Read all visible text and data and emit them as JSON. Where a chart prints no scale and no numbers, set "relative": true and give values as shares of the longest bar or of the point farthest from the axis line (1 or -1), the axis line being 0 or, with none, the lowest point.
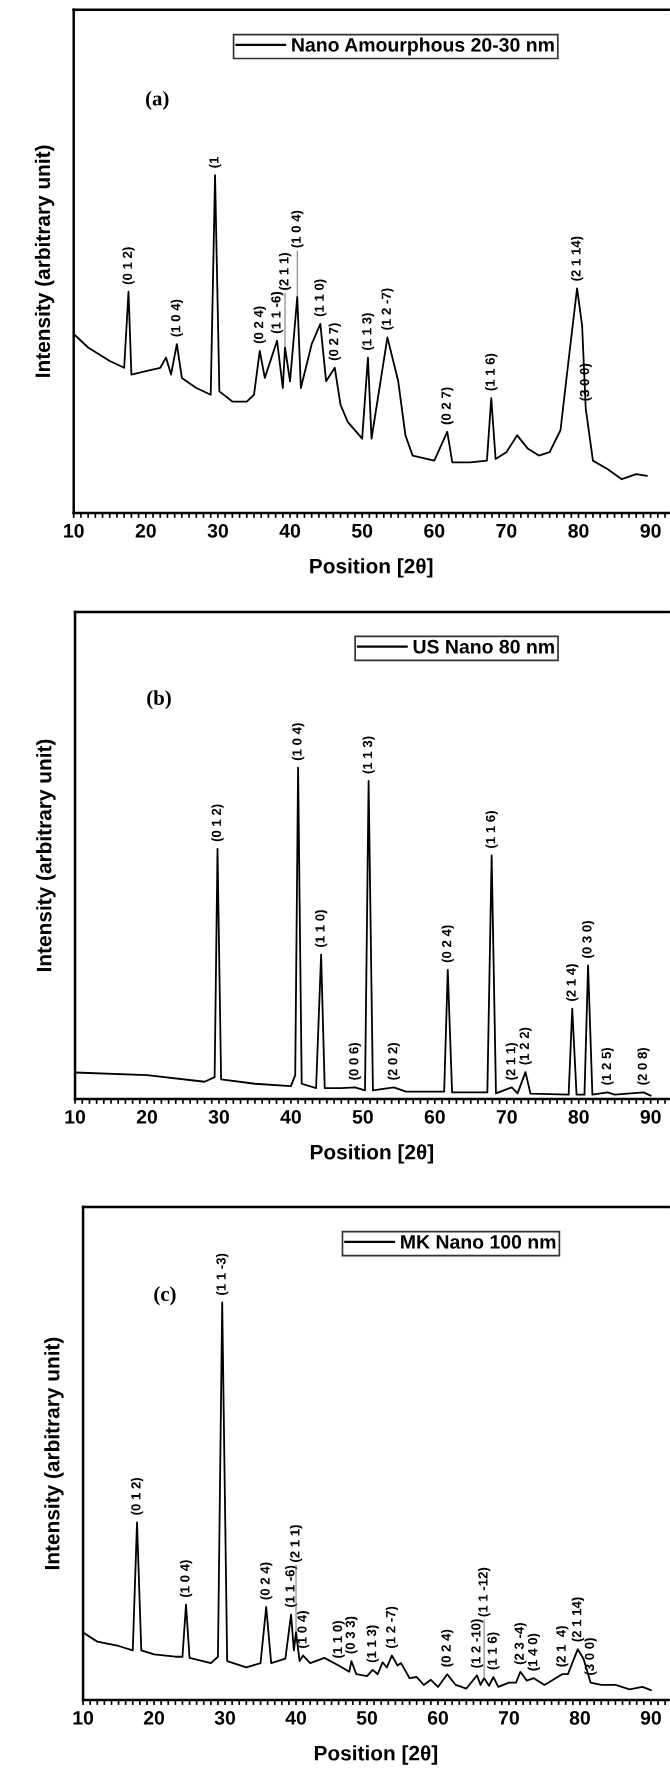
{
  "chart_data": [
    {
      "type": "line",
      "relative": true,
      "xlabel": "Position [2θ]",
      "ylabel": "Intensity (arbitrary unit)",
      "legend": "top right",
      "grid": false,
      "tick_labels": "x",
      "marker": "none",
      "line_style": "solid",
      "xlim": [
        10,
        92.5
      ],
      "xticks": [
        10,
        {
          "value": 11,
          "label": null
        },
        {
          "value": 12,
          "label": null
        },
        {
          "value": 13,
          "label": null
        },
        {
          "value": 14,
          "label": null
        },
        {
          "value": 15,
          "label": null
        },
        {
          "value": 16,
          "label": null
        },
        {
          "value": 17,
          "label": null
        },
        {
          "value": 18,
          "label": null
        },
        {
          "value": 19,
          "label": null
        },
        20,
        {
          "value": 21,
          "label": null
        },
        {
          "value": 22,
          "label": null
        },
        {
          "value": 23,
          "label": null
        },
        {
          "value": 24,
          "label": null
        },
        {
          "value": 25,
          "label": null
        },
        {
          "value": 26,
          "label": null
        },
        {
          "value": 27,
          "label": null
        },
        {
          "value": 28,
          "label": null
        },
        {
          "value": 29,
          "label": null
        },
        30,
        {
          "value": 31,
          "label": null
        },
        {
          "value": 32,
          "label": null
        },
        {
          "value": 33,
          "label": null
        },
        {
          "value": 34,
          "label": null
        },
        {
          "value": 35,
          "label": null
        },
        {
          "value": 36,
          "label": null
        },
        {
          "value": 37,
          "label": null
        },
        {
          "value": 38,
          "label": null
        },
        {
          "value": 39,
          "label": null
        },
        40,
        {
          "value": 41,
          "label": null
        },
        {
          "value": 42,
          "label": null
        },
        {
          "value": 43,
          "label": null
        },
        {
          "value": 44,
          "label": null
        },
        {
          "value": 45,
          "label": null
        },
        {
          "value": 46,
          "label": null
        },
        {
          "value": 47,
          "label": null
        },
        {
          "value": 48,
          "label": null
        },
        {
          "value": 49,
          "label": null
        },
        50,
        {
          "value": 51,
          "label": null
        },
        {
          "value": 52,
          "label": null
        },
        {
          "value": 53,
          "label": null
        },
        {
          "value": 54,
          "label": null
        },
        {
          "value": 55,
          "label": null
        },
        {
          "value": 56,
          "label": null
        },
        {
          "value": 57,
          "label": null
        },
        {
          "value": 58,
          "label": null
        },
        {
          "value": 59,
          "label": null
        },
        60,
        {
          "value": 61,
          "label": null
        },
        {
          "value": 62,
          "label": null
        },
        {
          "value": 63,
          "label": null
        },
        {
          "value": 64,
          "label": null
        },
        {
          "value": 65,
          "label": null
        },
        {
          "value": 66,
          "label": null
        },
        {
          "value": 67,
          "label": null
        },
        {
          "value": 68,
          "label": null
        },
        {
          "value": 69,
          "label": null
        },
        70,
        {
          "value": 71,
          "label": null
        },
        {
          "value": 72,
          "label": null
        },
        {
          "value": 73,
          "label": null
        },
        {
          "value": 74,
          "label": null
        },
        {
          "value": 75,
          "label": null
        },
        {
          "value": 76,
          "label": null
        },
        {
          "value": 77,
          "label": null
        },
        {
          "value": 78,
          "label": null
        },
        {
          "value": 79,
          "label": null
        },
        80,
        {
          "value": 81,
          "label": null
        },
        {
          "value": 82,
          "label": null
        },
        {
          "value": 83,
          "label": null
        },
        {
          "value": 84,
          "label": null
        },
        {
          "value": 85,
          "label": null
        },
        {
          "value": 86,
          "label": null
        },
        {
          "value": 87,
          "label": null
        },
        {
          "value": 88,
          "label": null
        },
        {
          "value": 89,
          "label": null
        },
        90,
        {
          "value": 91,
          "label": null
        },
        {
          "value": 92,
          "label": null
        }
      ],
      "x": [
        10,
        12,
        15,
        17,
        17.6,
        18,
        20,
        22,
        22.8,
        23.5,
        24.3,
        25,
        27,
        29,
        29.6,
        30.2,
        32,
        34,
        35,
        35.8,
        36.5,
        38.2,
        39,
        39.3,
        40,
        41,
        41.5,
        43,
        44.2,
        45,
        46.2,
        47,
        48,
        50,
        50.8,
        51.3,
        53.5,
        55,
        56,
        57,
        60,
        61.8,
        62.5,
        65,
        67.3,
        67.9,
        68.5,
        70,
        71.5,
        73,
        74.5,
        76,
        77.5,
        78.5,
        79.8,
        80.5,
        81,
        82,
        84,
        86,
        88,
        89.5
      ],
      "series": [
        {
          "name": "Nano Amourphous 20-30 nm",
          "color": "#000000",
          "values": [
            0.53,
            0.49,
            0.45,
            0.43,
            0.655,
            0.41,
            0.42,
            0.43,
            0.46,
            0.41,
            0.5,
            0.4,
            0.37,
            0.35,
            1.0,
            0.36,
            0.33,
            0.33,
            0.35,
            0.48,
            0.4,
            0.51,
            0.37,
            0.49,
            0.39,
            0.64,
            0.37,
            0.5,
            0.56,
            0.39,
            0.43,
            0.32,
            0.27,
            0.22,
            0.46,
            0.22,
            0.52,
            0.39,
            0.23,
            0.17,
            0.155,
            0.24,
            0.15,
            0.15,
            0.155,
            0.34,
            0.16,
            0.18,
            0.23,
            0.19,
            0.17,
            0.18,
            0.245,
            0.43,
            0.665,
            0.555,
            0.31,
            0.155,
            0.13,
            0.1,
            0.115,
            0.11
          ]
        }
      ],
      "annotations": [
        "(a)",
        {
          "text": "(0 1 2)",
          "x": 17.6,
          "y": 0.655
        },
        {
          "text": "(1 0 4)",
          "x": 24.3,
          "y": 0.5
        },
        {
          "text": "(1",
          "x": 29.6,
          "y": 1.0
        },
        {
          "text": "(0 2 4)",
          "x": 35.8,
          "y": 0.48
        },
        {
          "text": "(1 1 -6)",
          "x": 38.2,
          "y": 0.51
        },
        {
          "text": "(2 1 1)",
          "x": 39.3,
          "y": 0.49
        },
        {
          "text": "(1 0 4)",
          "x": 41,
          "y": 0.64
        },
        {
          "text": "(1 1 0)",
          "x": 44.2,
          "y": 0.56
        },
        {
          "text": "(0 2 7)",
          "x": 46.2,
          "y": 0.43
        },
        {
          "text": "(1 1 3)",
          "x": 50.8,
          "y": 0.46
        },
        {
          "text": "(1 2 -7)",
          "x": 53.5,
          "y": 0.52
        },
        {
          "text": "(0 2 7)",
          "x": 61.8,
          "y": 0.24
        },
        {
          "text": "(1 1 6)",
          "x": 67.9,
          "y": 0.34
        },
        {
          "text": "(2 1 14)",
          "x": 79.8,
          "y": 0.665
        },
        {
          "text": "(3 0 0)",
          "x": 81,
          "y": 0.31
        }
      ]
    },
    {
      "type": "line",
      "relative": true,
      "xlabel": "Position [2θ]",
      "ylabel": "Intensity (arbitrary unit)",
      "legend": "top right",
      "grid": false,
      "tick_labels": "x",
      "marker": "none",
      "line_style": "solid",
      "xlim": [
        10,
        92.5
      ],
      "xticks": [
        10,
        {
          "value": 11,
          "label": null
        },
        {
          "value": 12,
          "label": null
        },
        {
          "value": 13,
          "label": null
        },
        {
          "value": 14,
          "label": null
        },
        {
          "value": 15,
          "label": null
        },
        {
          "value": 16,
          "label": null
        },
        {
          "value": 17,
          "label": null
        },
        {
          "value": 18,
          "label": null
        },
        {
          "value": 19,
          "label": null
        },
        20,
        {
          "value": 21,
          "label": null
        },
        {
          "value": 22,
          "label": null
        },
        {
          "value": 23,
          "label": null
        },
        {
          "value": 24,
          "label": null
        },
        {
          "value": 25,
          "label": null
        },
        {
          "value": 26,
          "label": null
        },
        {
          "value": 27,
          "label": null
        },
        {
          "value": 28,
          "label": null
        },
        {
          "value": 29,
          "label": null
        },
        30,
        {
          "value": 31,
          "label": null
        },
        {
          "value": 32,
          "label": null
        },
        {
          "value": 33,
          "label": null
        },
        {
          "value": 34,
          "label": null
        },
        {
          "value": 35,
          "label": null
        },
        {
          "value": 36,
          "label": null
        },
        {
          "value": 37,
          "label": null
        },
        {
          "value": 38,
          "label": null
        },
        {
          "value": 39,
          "label": null
        },
        40,
        {
          "value": 41,
          "label": null
        },
        {
          "value": 42,
          "label": null
        },
        {
          "value": 43,
          "label": null
        },
        {
          "value": 44,
          "label": null
        },
        {
          "value": 45,
          "label": null
        },
        {
          "value": 46,
          "label": null
        },
        {
          "value": 47,
          "label": null
        },
        {
          "value": 48,
          "label": null
        },
        {
          "value": 49,
          "label": null
        },
        50,
        {
          "value": 51,
          "label": null
        },
        {
          "value": 52,
          "label": null
        },
        {
          "value": 53,
          "label": null
        },
        {
          "value": 54,
          "label": null
        },
        {
          "value": 55,
          "label": null
        },
        {
          "value": 56,
          "label": null
        },
        {
          "value": 57,
          "label": null
        },
        {
          "value": 58,
          "label": null
        },
        {
          "value": 59,
          "label": null
        },
        60,
        {
          "value": 61,
          "label": null
        },
        {
          "value": 62,
          "label": null
        },
        {
          "value": 63,
          "label": null
        },
        {
          "value": 64,
          "label": null
        },
        {
          "value": 65,
          "label": null
        },
        {
          "value": 66,
          "label": null
        },
        {
          "value": 67,
          "label": null
        },
        {
          "value": 68,
          "label": null
        },
        {
          "value": 69,
          "label": null
        },
        70,
        {
          "value": 71,
          "label": null
        },
        {
          "value": 72,
          "label": null
        },
        {
          "value": 73,
          "label": null
        },
        {
          "value": 74,
          "label": null
        },
        {
          "value": 75,
          "label": null
        },
        {
          "value": 76,
          "label": null
        },
        {
          "value": 77,
          "label": null
        },
        {
          "value": 78,
          "label": null
        },
        {
          "value": 79,
          "label": null
        },
        80,
        {
          "value": 81,
          "label": null
        },
        {
          "value": 82,
          "label": null
        },
        {
          "value": 83,
          "label": null
        },
        {
          "value": 84,
          "label": null
        },
        {
          "value": 85,
          "label": null
        },
        {
          "value": 86,
          "label": null
        },
        {
          "value": 87,
          "label": null
        },
        {
          "value": 88,
          "label": null
        },
        {
          "value": 89,
          "label": null
        },
        90,
        {
          "value": 91,
          "label": null
        },
        {
          "value": 92,
          "label": null
        }
      ],
      "x": [
        10,
        20,
        28,
        29.4,
        29.8,
        30.3,
        35,
        40,
        40.6,
        41,
        41.5,
        43.5,
        44.2,
        44.7,
        47,
        48.9,
        50.3,
        50.8,
        51.4,
        54.3,
        56,
        61.3,
        61.8,
        62.4,
        67.3,
        67.9,
        68.5,
        70.7,
        71.5,
        72.6,
        73.3,
        78.6,
        79.1,
        79.7,
        80.8,
        81.3,
        81.9,
        84,
        85,
        89,
        90
      ],
      "series": [
        {
          "name": "US Nano 80 nm",
          "color": "#000000",
          "values": [
            0.08,
            0.072,
            0.052,
            0.066,
            0.755,
            0.059,
            0.046,
            0.039,
            0.072,
            1.0,
            0.046,
            0.033,
            0.436,
            0.033,
            0.033,
            0.035,
            0.026,
            0.96,
            0.026,
            0.035,
            0.022,
            0.022,
            0.39,
            0.02,
            0.02,
            0.735,
            0.017,
            0.035,
            0.017,
            0.081,
            0.016,
            0.013,
            0.273,
            0.013,
            0.013,
            0.403,
            0.013,
            0.02,
            0.013,
            0.02,
            0.01
          ]
        }
      ],
      "annotations": [
        "(b)",
        {
          "text": "(0 1 2)",
          "x": 29.8,
          "y": 0.755
        },
        {
          "text": "(1 0 4)",
          "x": 41,
          "y": 1.0
        },
        {
          "text": "(1 1 0)",
          "x": 44.2,
          "y": 0.436
        },
        {
          "text": "(0 0 6)",
          "x": 48.9,
          "y": 0.035
        },
        {
          "text": "(1 1 3)",
          "x": 50.8,
          "y": 0.96
        },
        {
          "text": "(2 0 2)",
          "x": 54.3,
          "y": 0.035
        },
        {
          "text": "(0 2 4)",
          "x": 61.8,
          "y": 0.39
        },
        {
          "text": "(1 1 6)",
          "x": 67.9,
          "y": 0.735
        },
        {
          "text": "(2 1 1)",
          "x": 70.7,
          "y": 0.035
        },
        {
          "text": "(1 2 2)",
          "x": 72.6,
          "y": 0.081
        },
        {
          "text": "(2 1 4)",
          "x": 79.1,
          "y": 0.273
        },
        {
          "text": "(0 3 0)",
          "x": 81.3,
          "y": 0.403
        },
        {
          "text": "(1 2 5)",
          "x": 84,
          "y": 0.02
        },
        {
          "text": "(2 0 8)",
          "x": 89,
          "y": 0.02
        }
      ]
    },
    {
      "type": "line",
      "relative": true,
      "xlabel": "Position [2θ]",
      "ylabel": "Intensity (arbitrary unit)",
      "legend": "top right",
      "grid": false,
      "tick_labels": "x",
      "marker": "none",
      "line_style": "solid",
      "xlim": [
        10,
        92.5
      ],
      "xticks": [
        10,
        {
          "value": 11,
          "label": null
        },
        {
          "value": 12,
          "label": null
        },
        {
          "value": 13,
          "label": null
        },
        {
          "value": 14,
          "label": null
        },
        {
          "value": 15,
          "label": null
        },
        {
          "value": 16,
          "label": null
        },
        {
          "value": 17,
          "label": null
        },
        {
          "value": 18,
          "label": null
        },
        {
          "value": 19,
          "label": null
        },
        20,
        {
          "value": 21,
          "label": null
        },
        {
          "value": 22,
          "label": null
        },
        {
          "value": 23,
          "label": null
        },
        {
          "value": 24,
          "label": null
        },
        {
          "value": 25,
          "label": null
        },
        {
          "value": 26,
          "label": null
        },
        {
          "value": 27,
          "label": null
        },
        {
          "value": 28,
          "label": null
        },
        {
          "value": 29,
          "label": null
        },
        30,
        {
          "value": 31,
          "label": null
        },
        {
          "value": 32,
          "label": null
        },
        {
          "value": 33,
          "label": null
        },
        {
          "value": 34,
          "label": null
        },
        {
          "value": 35,
          "label": null
        },
        {
          "value": 36,
          "label": null
        },
        {
          "value": 37,
          "label": null
        },
        {
          "value": 38,
          "label": null
        },
        {
          "value": 39,
          "label": null
        },
        40,
        {
          "value": 41,
          "label": null
        },
        {
          "value": 42,
          "label": null
        },
        {
          "value": 43,
          "label": null
        },
        {
          "value": 44,
          "label": null
        },
        {
          "value": 45,
          "label": null
        },
        {
          "value": 46,
          "label": null
        },
        {
          "value": 47,
          "label": null
        },
        {
          "value": 48,
          "label": null
        },
        {
          "value": 49,
          "label": null
        },
        50,
        {
          "value": 51,
          "label": null
        },
        {
          "value": 52,
          "label": null
        },
        {
          "value": 53,
          "label": null
        },
        {
          "value": 54,
          "label": null
        },
        {
          "value": 55,
          "label": null
        },
        {
          "value": 56,
          "label": null
        },
        {
          "value": 57,
          "label": null
        },
        {
          "value": 58,
          "label": null
        },
        {
          "value": 59,
          "label": null
        },
        60,
        {
          "value": 61,
          "label": null
        },
        {
          "value": 62,
          "label": null
        },
        {
          "value": 63,
          "label": null
        },
        {
          "value": 64,
          "label": null
        },
        {
          "value": 65,
          "label": null
        },
        {
          "value": 66,
          "label": null
        },
        {
          "value": 67,
          "label": null
        },
        {
          "value": 68,
          "label": null
        },
        {
          "value": 69,
          "label": null
        },
        70,
        {
          "value": 71,
          "label": null
        },
        {
          "value": 72,
          "label": null
        },
        {
          "value": 73,
          "label": null
        },
        {
          "value": 74,
          "label": null
        },
        {
          "value": 75,
          "label": null
        },
        {
          "value": 76,
          "label": null
        },
        {
          "value": 77,
          "label": null
        },
        {
          "value": 78,
          "label": null
        },
        {
          "value": 79,
          "label": null
        },
        80,
        {
          "value": 81,
          "label": null
        },
        {
          "value": 82,
          "label": null
        },
        {
          "value": 83,
          "label": null
        },
        {
          "value": 84,
          "label": null
        },
        {
          "value": 85,
          "label": null
        },
        {
          "value": 86,
          "label": null
        },
        {
          "value": 87,
          "label": null
        },
        {
          "value": 88,
          "label": null
        },
        {
          "value": 89,
          "label": null
        },
        90,
        {
          "value": 91,
          "label": null
        },
        {
          "value": 92,
          "label": null
        }
      ],
      "x": [
        10,
        12,
        15,
        17,
        17.6,
        18.2,
        20,
        23,
        24,
        24.5,
        25,
        28,
        29,
        29.6,
        30.3,
        33,
        35,
        35.8,
        36.5,
        38.5,
        39.3,
        39.7,
        40,
        40.5,
        41,
        42,
        44,
        46,
        47.5,
        47.8,
        48.5,
        50,
        50.8,
        51.5,
        52.2,
        52.8,
        53.5,
        54.3,
        54.8,
        56,
        57,
        58,
        59,
        60,
        61.3,
        62.5,
        64,
        65.5,
        66,
        66.5,
        67.2,
        67.8,
        68.5,
        70,
        71,
        71.6,
        72.5,
        73.5,
        75,
        77.5,
        78.3,
        79.7,
        80.5,
        81.5,
        83,
        85,
        87,
        88.8,
        90
      ],
      "series": [
        {
          "name": "MK Nano 100 nm",
          "color": "#000000",
          "values": [
            0.17,
            0.147,
            0.136,
            0.125,
            0.447,
            0.125,
            0.115,
            0.109,
            0.109,
            0.24,
            0.106,
            0.093,
            0.109,
            1.0,
            0.098,
            0.082,
            0.093,
            0.234,
            0.093,
            0.104,
            0.215,
            0.125,
            0.171,
            0.098,
            0.112,
            0.093,
            0.106,
            0.087,
            0.071,
            0.098,
            0.065,
            0.06,
            0.076,
            0.065,
            0.095,
            0.082,
            0.112,
            0.087,
            0.093,
            0.055,
            0.058,
            0.038,
            0.051,
            0.033,
            0.065,
            0.038,
            0.029,
            0.062,
            0.038,
            0.055,
            0.036,
            0.058,
            0.033,
            0.044,
            0.044,
            0.071,
            0.049,
            0.055,
            0.038,
            0.065,
            0.065,
            0.128,
            0.104,
            0.044,
            0.038,
            0.038,
            0.027,
            0.033,
            0.025
          ]
        }
      ],
      "annotations": [
        "(c)",
        {
          "text": "(1 1 -3)",
          "x": 29.6,
          "y": 1.0
        },
        {
          "text": "(0 1 2)",
          "x": 17.6,
          "y": 0.447
        },
        {
          "text": "(1 0 4)",
          "x": 24.5,
          "y": 0.24
        },
        {
          "text": "(0 2 4)",
          "x": 35.8,
          "y": 0.234
        },
        {
          "text": "(1 1 -6)",
          "x": 39.3,
          "y": 0.215
        },
        {
          "text": "(2 1 1)",
          "x": 40,
          "y": 0.171
        },
        {
          "text": "(1 0 4)",
          "x": 41,
          "y": 0.112
        },
        {
          "text": "(1 1 0)",
          "x": 46,
          "y": 0.087
        },
        {
          "text": "(0 3 3)",
          "x": 47.8,
          "y": 0.098
        },
        {
          "text": "(1 1 3)",
          "x": 50.8,
          "y": 0.076
        },
        {
          "text": "(1 2 -7)",
          "x": 53.5,
          "y": 0.112
        },
        {
          "text": "(0 2 4)",
          "x": 61.3,
          "y": 0.065
        },
        {
          "text": "(1 2 -10)",
          "x": 65.5,
          "y": 0.062
        },
        {
          "text": "(1 1 -12)",
          "x": 66.5,
          "y": 0.055
        },
        {
          "text": "(1 1 6)",
          "x": 67.8,
          "y": 0.058
        },
        {
          "text": "(2 3 -4)",
          "x": 71.6,
          "y": 0.071
        },
        {
          "text": "(1 4 0)",
          "x": 73.5,
          "y": 0.055
        },
        {
          "text": "(2 1  4)",
          "x": 77.5,
          "y": 0.065
        },
        {
          "text": "(2 1 14)",
          "x": 79.7,
          "y": 0.128
        },
        {
          "text": "(3 0 0)",
          "x": 81.5,
          "y": 0.044
        }
      ]
    }
  ]
}
